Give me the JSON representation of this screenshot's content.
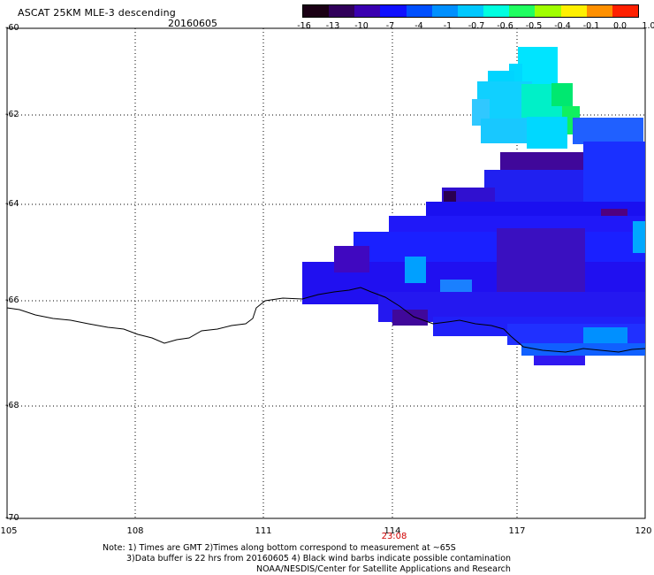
{
  "header": {
    "title": "ASCAT 25KM MLE-3 descending",
    "date": "20160605"
  },
  "colorbar": {
    "tick_labels": [
      "-16",
      "-13",
      "-10",
      "-7",
      "-4",
      "-1",
      "-0.7",
      "-0.6",
      "-0.5",
      "-0.4",
      "-0.1",
      "0.0",
      "1.0"
    ],
    "colors": [
      "#1a0014",
      "#30005a",
      "#3a00b0",
      "#1010ff",
      "#0050ff",
      "#0090ff",
      "#00c8ff",
      "#00ffe0",
      "#20ff60",
      "#a0ff00",
      "#fff000",
      "#ff9000",
      "#ff2000"
    ]
  },
  "axes": {
    "lat_labels": [
      "-60",
      "-62",
      "-64",
      "-66",
      "-68",
      "-70"
    ],
    "lon_labels": [
      "105",
      "108",
      "111",
      "114",
      "117",
      "120"
    ],
    "time_label": "23:08"
  },
  "notes": {
    "line1": "Note: 1) Times are GMT 2)Times along bottom correspond to measurement at ~65S",
    "line2": "3)Data buffer is 22 hrs from 20160605 4) Black wind barbs indicate possible contamination",
    "line3": "NOAA/NESDIS/Center for Satellite Applications and Research"
  }
}
